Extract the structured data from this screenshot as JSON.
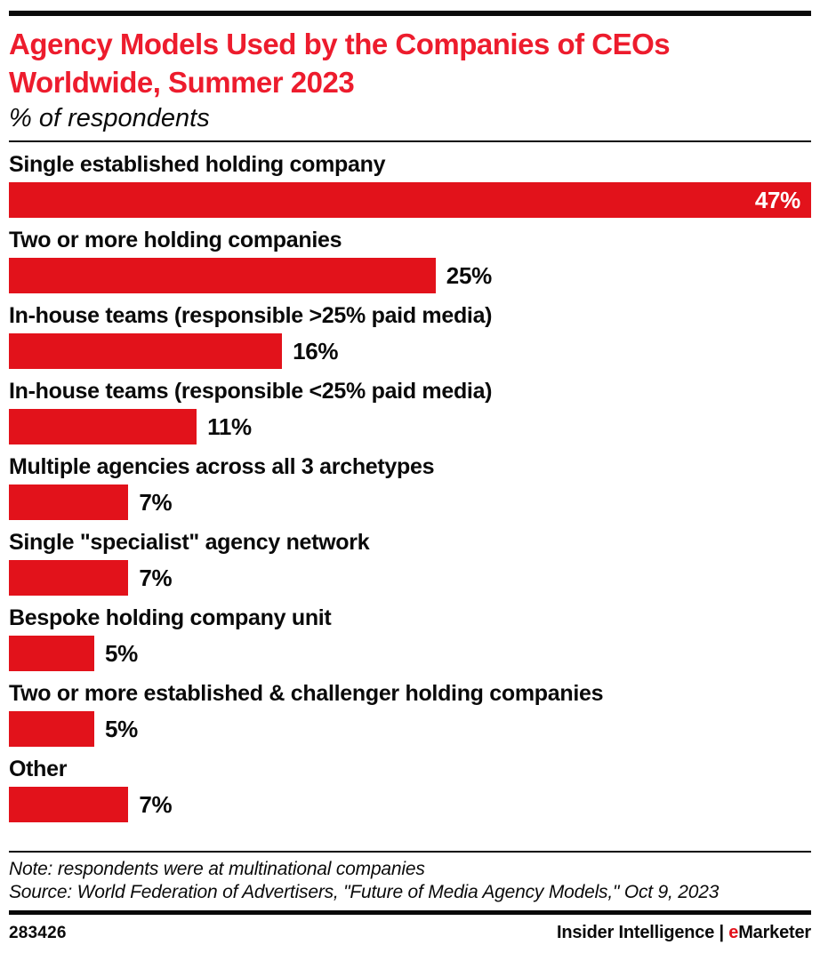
{
  "colors": {
    "title_red": "#ED1C2D",
    "bar_red": "#E2121B",
    "ink": "#0a0a0a"
  },
  "header": {
    "title": "Agency Models Used by the Companies of CEOs Worldwide, Summer 2023",
    "subtitle": "% of respondents"
  },
  "chart_data": {
    "type": "bar",
    "orientation": "horizontal",
    "title": "Agency Models Used by the Companies of CEOs Worldwide, Summer 2023",
    "subtitle": "% of respondents",
    "xlabel": "",
    "ylabel": "",
    "xlim": [
      0,
      47
    ],
    "grid": false,
    "legend": false,
    "bar_color": "#E2121B",
    "categories": [
      "Single established holding company",
      "Two or more holding companies",
      "In-house teams (responsible >25% paid media)",
      "In-house teams (responsible <25% paid media)",
      "Multiple agencies across all 3 archetypes",
      "Single \"specialist\" agency network",
      "Bespoke holding company unit",
      "Two or more established & challenger holding companies",
      "Other"
    ],
    "values": [
      47,
      25,
      16,
      11,
      7,
      7,
      5,
      5,
      7
    ],
    "value_labels": [
      "47%",
      "25%",
      "16%",
      "11%",
      "7%",
      "7%",
      "5%",
      "5%",
      "7%"
    ]
  },
  "footer": {
    "note": "Note: respondents were at multinational companies",
    "source": "Source: World Federation of Advertisers, \"Future of Media Agency Models,\" Oct 9, 2023",
    "chart_id": "283426",
    "brand_left": "Insider Intelligence",
    "brand_divider": "|",
    "brand_e": "e",
    "brand_rest": "Marketer"
  }
}
